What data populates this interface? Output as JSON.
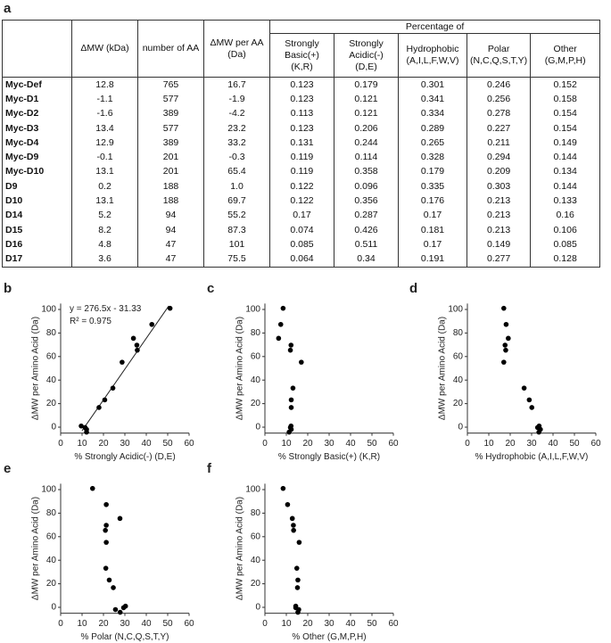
{
  "table": {
    "panel_label": "a",
    "group_header": "Percentage of",
    "columns": [
      {
        "label": "ΔMW (kDa)"
      },
      {
        "label": "number of AA"
      },
      {
        "label": "ΔMW per AA (Da)"
      },
      {
        "label": "Strongly Basic(+)",
        "residues": "(K,R)"
      },
      {
        "label": "Strongly Acidic(-)",
        "residues": "(D,E)"
      },
      {
        "label": "Hydrophobic",
        "residues": "(A,I,L,F,W,V)"
      },
      {
        "label": "Polar",
        "residues": "(N,C,Q,S,T,Y)"
      },
      {
        "label": "Other",
        "residues": "(G,M,P,H)"
      }
    ],
    "rows": [
      [
        "Myc-Def",
        "12.8",
        "765",
        "16.7",
        "0.123",
        "0.179",
        "0.301",
        "0.246",
        "0.152"
      ],
      [
        "Myc-D1",
        "-1.1",
        "577",
        "-1.9",
        "0.123",
        "0.121",
        "0.341",
        "0.256",
        "0.158"
      ],
      [
        "Myc-D2",
        "-1.6",
        "389",
        "-4.2",
        "0.113",
        "0.121",
        "0.334",
        "0.278",
        "0.154"
      ],
      [
        "Myc-D3",
        "13.4",
        "577",
        "23.2",
        "0.123",
        "0.206",
        "0.289",
        "0.227",
        "0.154"
      ],
      [
        "Myc-D4",
        "12.9",
        "389",
        "33.2",
        "0.131",
        "0.244",
        "0.265",
        "0.211",
        "0.149"
      ],
      [
        "Myc-D9",
        "-0.1",
        "201",
        "-0.3",
        "0.119",
        "0.114",
        "0.328",
        "0.294",
        "0.144"
      ],
      [
        "Myc-D10",
        "13.1",
        "201",
        "65.4",
        "0.119",
        "0.358",
        "0.179",
        "0.209",
        "0.134"
      ],
      [
        "D9",
        "0.2",
        "188",
        "1.0",
        "0.122",
        "0.096",
        "0.335",
        "0.303",
        "0.144"
      ],
      [
        "D10",
        "13.1",
        "188",
        "69.7",
        "0.122",
        "0.356",
        "0.176",
        "0.213",
        "0.133"
      ],
      [
        "D14",
        "5.2",
        "94",
        "55.2",
        "0.17",
        "0.287",
        "0.17",
        "0.213",
        "0.16"
      ],
      [
        "D15",
        "8.2",
        "94",
        "87.3",
        "0.074",
        "0.426",
        "0.181",
        "0.213",
        "0.106"
      ],
      [
        "D16",
        "4.8",
        "47",
        "101",
        "0.085",
        "0.511",
        "0.17",
        "0.149",
        "0.085"
      ],
      [
        "D17",
        "3.6",
        "47",
        "75.5",
        "0.064",
        "0.34",
        "0.191",
        "0.277",
        "0.128"
      ]
    ]
  },
  "chart_data": [
    {
      "type": "scatter",
      "panel_label": "b",
      "x_label": "% Strongly Acidic(-) (D,E)",
      "y_label": "ΔMW per Amino Acid (Da)",
      "x": [
        17.9,
        12.1,
        12.1,
        20.6,
        24.4,
        11.4,
        35.8,
        9.6,
        35.6,
        28.7,
        42.6,
        51.1,
        34
      ],
      "y": [
        16.7,
        -1.9,
        -4.2,
        23.2,
        33.2,
        -0.3,
        65.4,
        1.0,
        69.7,
        55.2,
        87.3,
        101,
        75.5
      ],
      "color": "#000000",
      "xlim": [
        0,
        60
      ],
      "xticks": [
        0,
        10,
        20,
        30,
        40,
        50,
        60
      ],
      "ylim": [
        -5,
        105
      ],
      "yticks": [
        0,
        20,
        40,
        60,
        80,
        100
      ],
      "annotations": [
        "y = 276.5x - 31.33",
        "R² = 0.975"
      ],
      "trend_line": {
        "x": [
          10,
          50.5
        ],
        "y": [
          -3,
          103
        ]
      }
    },
    {
      "type": "scatter",
      "panel_label": "c",
      "x_label": "% Strongly Basic(+) (K,R)",
      "y_label": "ΔMW per Amino Acid (Da)",
      "x": [
        12.3,
        12.3,
        11.3,
        12.3,
        13.1,
        11.9,
        11.9,
        12.2,
        12.2,
        17,
        7.4,
        8.5,
        6.4
      ],
      "y": [
        16.7,
        -1.9,
        -4.2,
        23.2,
        33.2,
        -0.3,
        65.4,
        1.0,
        69.7,
        55.2,
        87.3,
        101,
        75.5
      ],
      "color": "#000000",
      "xlim": [
        0,
        60
      ],
      "xticks": [
        0,
        10,
        20,
        30,
        40,
        50,
        60
      ],
      "ylim": [
        -5,
        105
      ],
      "yticks": [
        0,
        20,
        40,
        60,
        80,
        100
      ]
    },
    {
      "type": "scatter",
      "panel_label": "d",
      "x_label": "% Hydrophobic (A,I,L,F,W,V)",
      "y_label": "ΔMW per Amino Acid (Da)",
      "x": [
        30.1,
        34.1,
        33.4,
        28.9,
        26.5,
        32.8,
        17.9,
        33.5,
        17.6,
        17,
        18.1,
        17,
        19.1
      ],
      "y": [
        16.7,
        -1.9,
        -4.2,
        23.2,
        33.2,
        -0.3,
        65.4,
        1.0,
        69.7,
        55.2,
        87.3,
        101,
        75.5
      ],
      "color": "#000000",
      "xlim": [
        0,
        60
      ],
      "xticks": [
        0,
        10,
        20,
        30,
        40,
        50,
        60
      ],
      "ylim": [
        -5,
        105
      ],
      "yticks": [
        0,
        20,
        40,
        60,
        80,
        100
      ]
    },
    {
      "type": "scatter",
      "panel_label": "e",
      "x_label": "% Polar (N,C,Q,S,T,Y)",
      "y_label": "ΔMW per Amino Acid (Da)",
      "x": [
        24.6,
        25.6,
        27.8,
        22.7,
        21.1,
        29.4,
        20.9,
        30.3,
        21.3,
        21.3,
        21.3,
        14.9,
        27.7
      ],
      "y": [
        16.7,
        -1.9,
        -4.2,
        23.2,
        33.2,
        -0.3,
        65.4,
        1.0,
        69.7,
        55.2,
        87.3,
        101,
        75.5
      ],
      "color": "#000000",
      "xlim": [
        0,
        60
      ],
      "xticks": [
        0,
        10,
        20,
        30,
        40,
        50,
        60
      ],
      "ylim": [
        -5,
        105
      ],
      "yticks": [
        0,
        20,
        40,
        60,
        80,
        100
      ]
    },
    {
      "type": "scatter",
      "panel_label": "f",
      "x_label": "% Other (G,M,P,H)",
      "y_label": "ΔMW per Amino Acid (Da)",
      "x": [
        15.2,
        15.8,
        15.4,
        15.4,
        14.9,
        14.4,
        13.4,
        14.4,
        13.3,
        16,
        10.6,
        8.5,
        12.8
      ],
      "y": [
        16.7,
        -1.9,
        -4.2,
        23.2,
        33.2,
        -0.3,
        65.4,
        1.0,
        69.7,
        55.2,
        87.3,
        101,
        75.5
      ],
      "color": "#000000",
      "xlim": [
        0,
        60
      ],
      "xticks": [
        0,
        10,
        20,
        30,
        40,
        50,
        60
      ],
      "ylim": [
        -5,
        105
      ],
      "yticks": [
        0,
        20,
        40,
        60,
        80,
        100
      ]
    }
  ]
}
